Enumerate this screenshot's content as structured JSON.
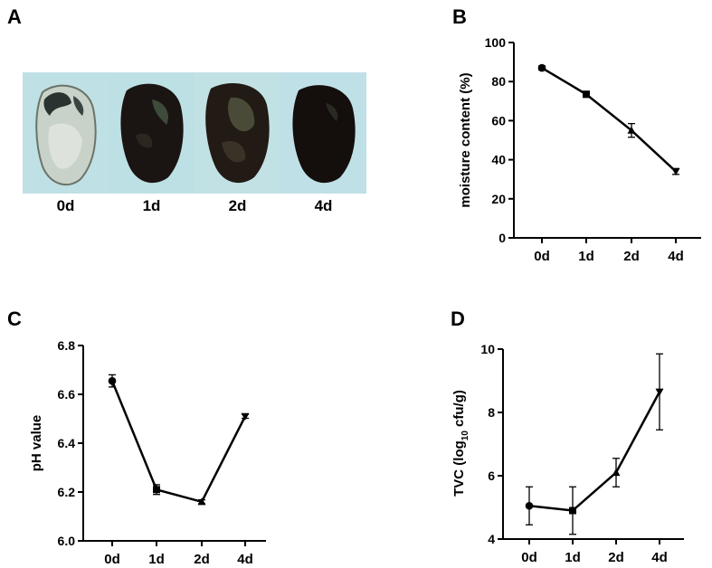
{
  "panels": {
    "a": {
      "letter": "A"
    },
    "b": {
      "letter": "B"
    },
    "c": {
      "letter": "C"
    },
    "d": {
      "letter": "D"
    }
  },
  "photo_labels": [
    "0d",
    "1d",
    "2d",
    "4d"
  ],
  "chart_data": [
    {
      "id": "moisture",
      "type": "line",
      "categories": [
        "0d",
        "1d",
        "2d",
        "4d"
      ],
      "values": [
        87,
        73.5,
        55,
        34
      ],
      "errors": [
        1,
        1.5,
        3.5,
        1.5
      ],
      "markers": [
        "circle",
        "square",
        "triangle-up",
        "triangle-down"
      ],
      "ylabel": "moisture content (%)",
      "ylim": [
        0,
        100
      ],
      "yticks": [
        0,
        20,
        40,
        60,
        80,
        100
      ],
      "ytick_labels": [
        "0",
        "20",
        "40",
        "60",
        "80",
        "100"
      ]
    },
    {
      "id": "ph",
      "type": "line",
      "categories": [
        "0d",
        "1d",
        "2d",
        "4d"
      ],
      "values": [
        6.655,
        6.21,
        6.16,
        6.51
      ],
      "errors": [
        0.025,
        0.02,
        0.008,
        0.008
      ],
      "markers": [
        "circle",
        "square",
        "triangle-up",
        "triangle-down"
      ],
      "ylabel": "pH value",
      "ylim": [
        6.0,
        6.8
      ],
      "yticks": [
        6.0,
        6.2,
        6.4,
        6.6,
        6.8
      ],
      "ytick_labels": [
        "6.0",
        "6.2",
        "6.4",
        "6.6",
        "6.8"
      ]
    },
    {
      "id": "tvc",
      "type": "line",
      "categories": [
        "0d",
        "1d",
        "2d",
        "4d"
      ],
      "values": [
        5.05,
        4.9,
        6.1,
        8.65
      ],
      "errors": [
        0.6,
        0.75,
        0.45,
        1.2
      ],
      "markers": [
        "circle",
        "square",
        "triangle-up",
        "triangle-down"
      ],
      "ylabel_main": "TVC (log",
      "ylabel_sub": "10",
      "ylabel_tail": " cfu/g)",
      "ylim": [
        4,
        10
      ],
      "yticks": [
        4,
        6,
        8,
        10
      ],
      "ytick_labels": [
        "4",
        "6",
        "8",
        "10"
      ]
    }
  ]
}
